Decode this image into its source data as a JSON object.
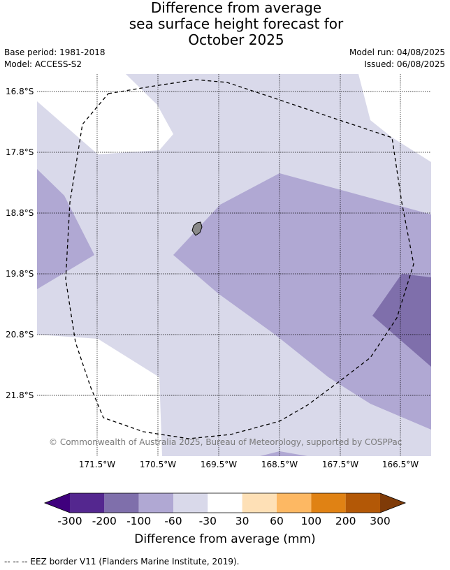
{
  "title": {
    "line1": "Difference from average",
    "line2": "sea surface height forecast for",
    "line3": "October 2025"
  },
  "meta": {
    "base_period": "Base period: 1981-2018",
    "model": "Model: ACCESS-S2",
    "model_run": "Model run: 04/08/2025",
    "issued": "Issued: 06/08/2025"
  },
  "map": {
    "lat_labels": [
      "16.8°S",
      "17.8°S",
      "18.8°S",
      "19.8°S",
      "20.8°S",
      "21.8°S"
    ],
    "lon_labels": [
      "171.5°W",
      "170.5°W",
      "169.5°W",
      "168.5°W",
      "167.5°W",
      "166.5°W"
    ],
    "credit": "© Commonwealth of Australia 2025, Bureau of Meteorology, supported by COSPPac"
  },
  "colorbar": {
    "ticks": [
      "-300",
      "-200",
      "-100",
      "-60",
      "-30",
      "30",
      "60",
      "100",
      "200",
      "300"
    ],
    "colors": [
      "#3f007d",
      "#54278f",
      "#7f6fab",
      "#b0a8d3",
      "#d9d9ea",
      "#ffffff",
      "#fee0b6",
      "#fdb863",
      "#e08214",
      "#b35806",
      "#7f3b08"
    ],
    "label": "Difference from average (mm)"
  },
  "legend": {
    "eez": "--  --  -- EEZ border V11 (Flanders Marine Institute, 2019)."
  }
}
